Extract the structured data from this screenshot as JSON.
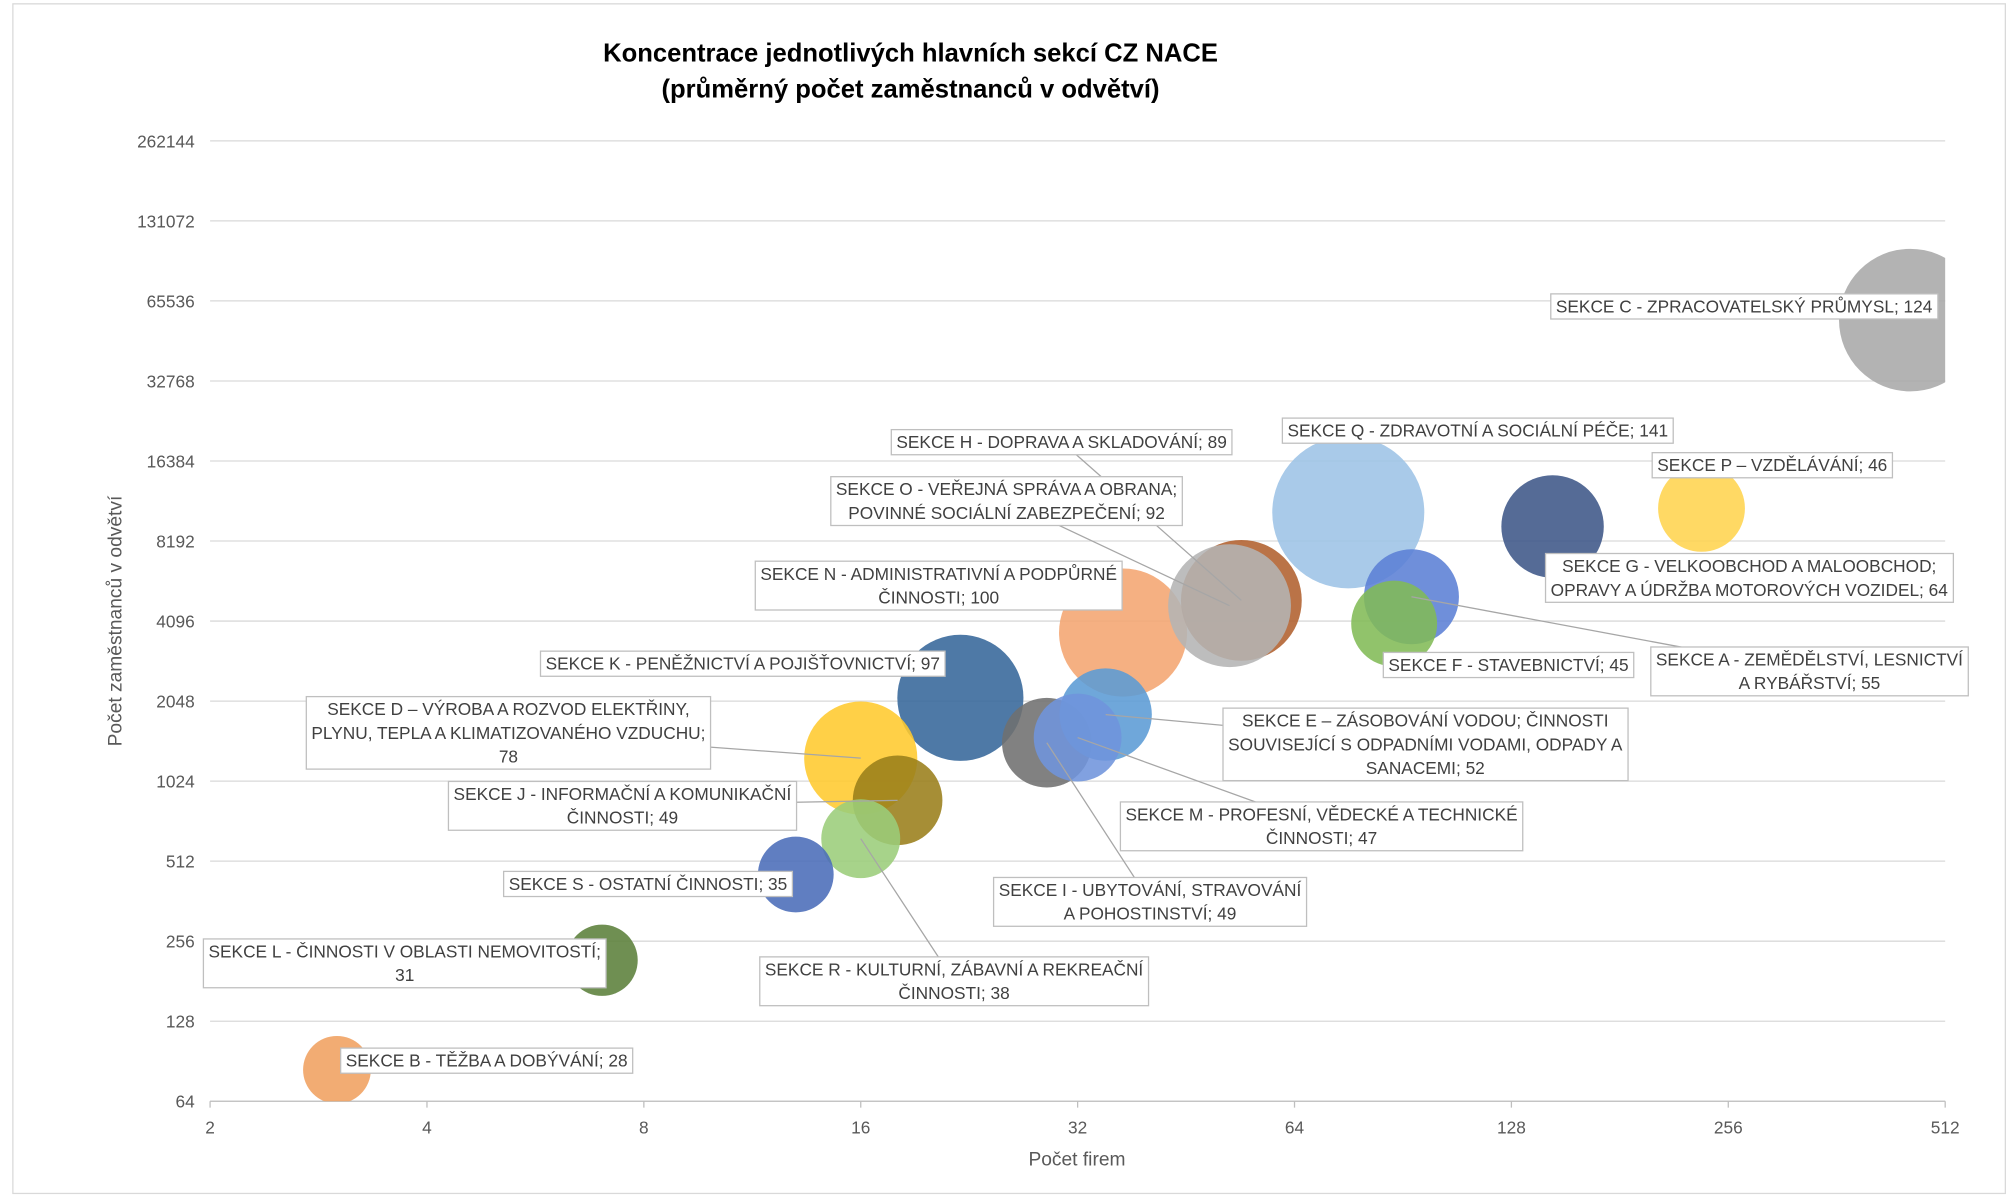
{
  "chart_data": {
    "type": "bubble",
    "title": "Koncentrace jednotlivých hlavních sekcí CZ NACE",
    "subtitle": "(průměrný počet zaměstnanců v odvětví)",
    "x_label": "Počet firem",
    "y_label": "Počet zaměstnanců v odvětví",
    "log_x": true,
    "log_y": true,
    "grid": true,
    "xlim": [
      2,
      512
    ],
    "xticks": [
      2,
      4,
      8,
      16,
      32,
      64,
      128,
      256,
      512
    ],
    "ylim": [
      64,
      262144
    ],
    "yticks": [
      64,
      128,
      256,
      512,
      1024,
      2048,
      4096,
      8192,
      16384,
      32768,
      65536,
      131072,
      262144
    ],
    "series": [
      {
        "color": "#a9a9a9",
        "x": [
          458
        ],
        "y": [
          55500
        ],
        "size": [
          124
        ],
        "value_labels": [
          "SEKCE C - ZPRACOVATELSKÝ PRŮMYSL; 124"
        ]
      },
      {
        "color": "#9dc3e6",
        "x": [
          76
        ],
        "y": [
          10500
        ],
        "size": [
          141
        ],
        "value_labels": [
          "SEKCE Q - ZDRAVOTNÍ A SOCIÁLNÍ PÉČE; 141"
        ]
      },
      {
        "color": "#3e5688",
        "x": [
          146
        ],
        "y": [
          9290
        ],
        "size": [
          64
        ],
        "value_labels": [
          "SEKCE G - VELKOOBCHOD A MALOOBCHOD;\nOPRAVY A ÚDRŽBA MOTOROVÝCH VOZIDEL; 64"
        ]
      },
      {
        "color": "#ffd44f",
        "x": [
          235
        ],
        "y": [
          10870
        ],
        "size": [
          46
        ],
        "value_labels": [
          "SEKCE P – VZDĚLÁVÁNÍ; 46"
        ]
      },
      {
        "color": "#f4a571",
        "x": [
          37
        ],
        "y": [
          3707
        ],
        "size": [
          100
        ],
        "value_labels": [
          "SEKCE N - ADMINISTRATIVNÍ A PODPŮRNÉ\nČINNOSTI; 100"
        ]
      },
      {
        "color": "#b0602e",
        "x": [
          54
        ],
        "y": [
          4900
        ],
        "size": [
          89
        ],
        "value_labels": [
          "SEKCE H - DOPRAVA A SKLADOVÁNÍ; 89"
        ]
      },
      {
        "color": "#b4b4b4",
        "x": [
          52
        ],
        "y": [
          4679
        ],
        "size": [
          92
        ],
        "value_labels": [
          "SEKCE O - VEŘEJNÁ SPRÁVA A OBRANA;\nPOVINNÉ SOCIÁLNÍ ZABEZPEČENÍ; 92"
        ]
      },
      {
        "color": "#5b7fd5",
        "x": [
          93
        ],
        "y": [
          5055
        ],
        "size": [
          55
        ],
        "value_labels": [
          "SEKCE A - ZEMĚDĚLSTVÍ, LESNICTVÍ\nA RYBÁŘSTVÍ; 55"
        ]
      },
      {
        "color": "#82bb57",
        "x": [
          88
        ],
        "y": [
          4006
        ],
        "size": [
          45
        ],
        "value_labels": [
          "SEKCE F - STAVEBNICTVÍ; 45"
        ]
      },
      {
        "color": "#35679a",
        "x": [
          22
        ],
        "y": [
          2106
        ],
        "size": [
          97
        ],
        "value_labels": [
          "SEKCE K - PENĚŽNICTVÍ A POJIŠŤOVNICTVÍ; 97"
        ]
      },
      {
        "color": "#ffc92e",
        "x": [
          16
        ],
        "y": [
          1250
        ],
        "size": [
          78
        ],
        "value_labels": [
          "SEKCE D – VÝROBA A ROZVOD ELEKTŘINY,\nPLYNU, TEPLA A KLIMATIZOVANÉHO VZDUCHU;\n78"
        ]
      },
      {
        "color": "#707070",
        "x": [
          29
        ],
        "y": [
          1428
        ],
        "size": [
          49
        ],
        "value_labels": [
          "SEKCE I - UBYTOVÁNÍ, STRAVOVÁNÍ\nA POHOSTINSTVÍ; 49"
        ]
      },
      {
        "color": "#5b9bd5",
        "x": [
          35
        ],
        "y": [
          1822
        ],
        "size": [
          52
        ],
        "value_labels": [
          "SEKCE E – ZÁSOBOVÁNÍ VODOU; ČINNOSTI\nSOUVISEJÍCÍ S ODPADNÍMI VODAMI, ODPADY A\nSANACEMI; 52"
        ]
      },
      {
        "color": "#7094dc",
        "x": [
          32
        ],
        "y": [
          1493
        ],
        "size": [
          47
        ],
        "value_labels": [
          "SEKCE M - PROFESNÍ, VĚDECKÉ A TECHNICKÉ\nČINNOSTI; 47"
        ]
      },
      {
        "color": "#9a7e1a",
        "x": [
          18
        ],
        "y": [
          867
        ],
        "size": [
          49
        ],
        "value_labels": [
          "SEKCE J - INFORMAČNÍ A KOMUNIKAČNÍ\nČINNOSTI; 49"
        ]
      },
      {
        "color": "#9bcd7a",
        "x": [
          16
        ],
        "y": [
          622
        ],
        "size": [
          38
        ],
        "value_labels": [
          "SEKCE R - KULTURNÍ, ZÁBAVNÍ A REKREAČNÍ\nČINNOSTI; 38"
        ]
      },
      {
        "color": "#4a6cb8",
        "x": [
          13
        ],
        "y": [
          456
        ],
        "size": [
          35
        ],
        "value_labels": [
          "SEKCE S - OSTATNÍ ČINNOSTI; 35"
        ]
      },
      {
        "color": "#5b7f3a",
        "x": [
          7
        ],
        "y": [
          217
        ],
        "size": [
          31
        ],
        "value_labels": [
          "SEKCE L - ČINNOSTI V OBLASTI NEMOVITOSTÍ;\n31"
        ]
      },
      {
        "color": "#f0a060",
        "x": [
          3
        ],
        "y": [
          84
        ],
        "size": [
          28
        ],
        "value_labels": [
          "SEKCE B - TĚŽBA A DOBÝVÁNÍ; 28"
        ]
      }
    ]
  }
}
